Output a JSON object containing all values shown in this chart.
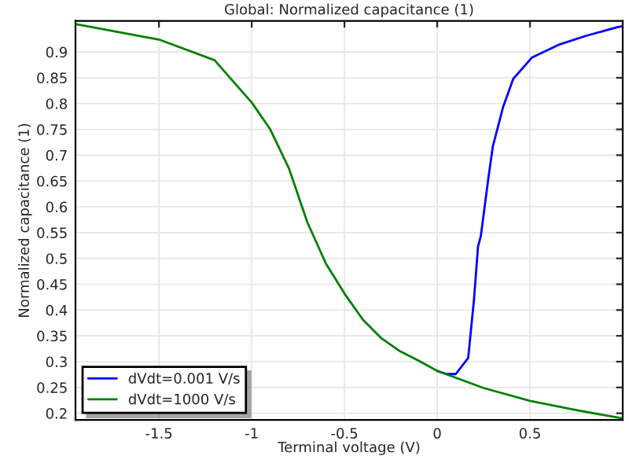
{
  "chart_data": {
    "type": "line",
    "title": "Global: Normalized capacitance (1)",
    "xlabel": "Terminal voltage (V)",
    "ylabel": "Normalized capacitance (1)",
    "xlim": [
      -1.95,
      1.0
    ],
    "ylim": [
      0.187,
      0.96
    ],
    "xticks": [
      -1.5,
      -1,
      -0.5,
      0,
      0.5
    ],
    "yticks": [
      0.2,
      0.25,
      0.3,
      0.35,
      0.4,
      0.45,
      0.5,
      0.55,
      0.6,
      0.65,
      0.7,
      0.75,
      0.8,
      0.85,
      0.9
    ],
    "grid": true,
    "legend": "bottom left",
    "line_style": "solid",
    "marker": "none",
    "series": [
      {
        "name": "dVdt=0.001 V/s",
        "color": "#0000ff",
        "x": [
          0.0,
          0.05,
          0.1,
          0.167,
          0.198,
          0.22,
          0.235,
          0.276,
          0.3,
          0.355,
          0.41,
          0.51,
          0.655,
          0.8,
          0.97,
          1.0
        ],
        "values": [
          0.282,
          0.276,
          0.276,
          0.307,
          0.419,
          0.523,
          0.543,
          0.656,
          0.717,
          0.793,
          0.848,
          0.889,
          0.914,
          0.931,
          0.948,
          0.95
        ]
      },
      {
        "name": "dVdt=1000 V/s",
        "color": "#008000",
        "x": [
          -1.95,
          -1.5,
          -1.2,
          -1.0,
          -0.9,
          -0.8,
          -0.7,
          -0.6,
          -0.5,
          -0.4,
          -0.3,
          -0.2,
          -0.1,
          0.0,
          0.25,
          0.5,
          0.75,
          1.0
        ],
        "values": [
          0.954,
          0.924,
          0.884,
          0.802,
          0.75,
          0.675,
          0.57,
          0.49,
          0.432,
          0.381,
          0.345,
          0.32,
          0.302,
          0.282,
          0.249,
          0.224,
          0.206,
          0.19
        ]
      }
    ]
  }
}
